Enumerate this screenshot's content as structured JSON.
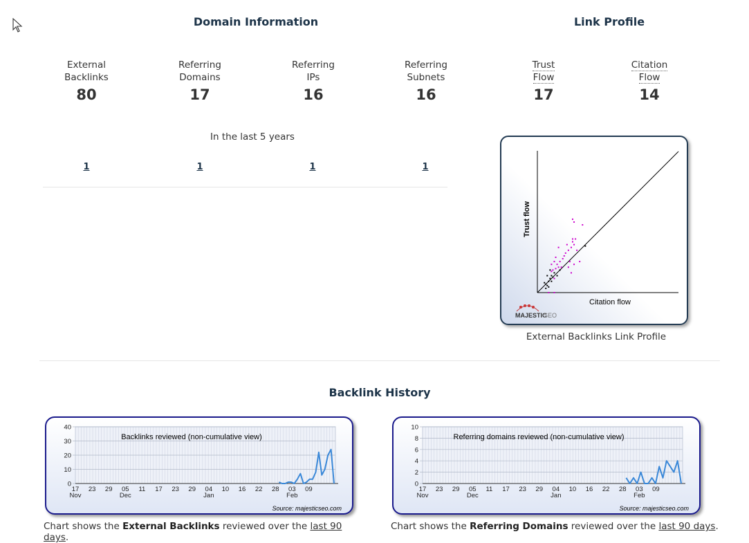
{
  "domain_info": {
    "title": "Domain Information",
    "stats": [
      {
        "label1": "External",
        "label2": "Backlinks",
        "value": "80"
      },
      {
        "label1": "Referring",
        "label2": "Domains",
        "value": "17"
      },
      {
        "label1": "Referring",
        "label2": "IPs",
        "value": "16"
      },
      {
        "label1": "Referring",
        "label2": "Subnets",
        "value": "16"
      }
    ],
    "period_label": "In the last 5 years",
    "period_values": [
      "1",
      "1",
      "1",
      "1"
    ]
  },
  "link_profile": {
    "title": "Link Profile",
    "stats": [
      {
        "label1": "Trust",
        "label2": "Flow",
        "value": "17"
      },
      {
        "label1": "Citation",
        "label2": "Flow",
        "value": "14"
      }
    ],
    "chart_caption": "External Backlinks Link Profile",
    "logo_text": "MAJESTIC",
    "logo_text2": "SEO"
  },
  "history": {
    "title": "Backlink History",
    "source": "Source: majesticseo.com",
    "caption_left": {
      "pre": "Chart shows the ",
      "bold": "External Backlinks",
      "mid": " reviewed over the ",
      "link": "last 90 days",
      "post": "."
    },
    "caption_right": {
      "pre": "Chart shows the ",
      "bold": "Referring Domains",
      "mid": " reviewed over the ",
      "link": "last 90 days",
      "post": "."
    }
  },
  "chart_data": [
    {
      "type": "scatter",
      "title": "",
      "xlabel": "Citation flow",
      "ylabel": "Trust flow",
      "xlim": [
        0,
        100
      ],
      "ylim": [
        0,
        100
      ],
      "reference_line": "y = x",
      "series": [
        {
          "color": "#cc00cc",
          "points": [
            [
              20,
              28
            ],
            [
              22,
              30
            ],
            [
              24,
              32
            ],
            [
              21,
              34
            ],
            [
              25,
              36
            ],
            [
              18,
              24
            ],
            [
              26,
              20
            ],
            [
              23,
              22
            ],
            [
              27,
              38
            ],
            [
              15,
              18
            ],
            [
              14,
              20
            ],
            [
              13,
              17
            ],
            [
              16,
              22
            ],
            [
              17,
              18
            ],
            [
              19,
              26
            ],
            [
              12,
              10
            ],
            [
              11,
              16
            ],
            [
              26,
              34
            ],
            [
              24,
              14
            ],
            [
              13,
              25
            ],
            [
              10,
              15
            ],
            [
              28,
              30
            ],
            [
              25,
              38
            ],
            [
              22,
              18
            ],
            [
              30,
              22
            ],
            [
              15,
              32
            ],
            [
              10,
              20
            ],
            [
              12,
              0
            ],
            [
              8,
              0
            ],
            [
              26,
              50
            ],
            [
              12,
              22
            ],
            [
              25,
              52
            ],
            [
              32,
              48
            ]
          ]
        },
        {
          "color": "#000000",
          "points": [
            [
              7,
              5
            ],
            [
              8,
              8
            ],
            [
              6,
              6
            ],
            [
              9,
              10
            ],
            [
              10,
              12
            ],
            [
              11,
              11
            ],
            [
              8,
              4
            ],
            [
              12,
              14
            ],
            [
              14,
              12
            ],
            [
              6,
              3
            ],
            [
              9,
              16
            ],
            [
              10,
              8
            ],
            [
              7,
              12
            ],
            [
              16,
              16
            ],
            [
              34,
              33
            ],
            [
              5,
              7
            ]
          ]
        }
      ]
    },
    {
      "type": "line",
      "title": "Backlinks reviewed (non-cumulative view)",
      "xlabel": "",
      "ylabel": "",
      "ylim": [
        0,
        40
      ],
      "y_ticks": [
        "0",
        "10",
        "20",
        "30",
        "40"
      ],
      "x_ticks": [
        "17",
        "23",
        "29",
        "05",
        "11",
        "17",
        "23",
        "29",
        "04",
        "10",
        "16",
        "22",
        "28",
        "03",
        "09"
      ],
      "x_month_labels": [
        {
          "label": "Nov",
          "at": 0
        },
        {
          "label": "Dec",
          "at": 3
        },
        {
          "label": "Jan",
          "at": 8
        },
        {
          "label": "Feb",
          "at": 13
        }
      ],
      "series": [
        {
          "color": "#3a88d8",
          "values": [
            1,
            0,
            0,
            1,
            1,
            0,
            3,
            7,
            0,
            1,
            3,
            3,
            8,
            22,
            6,
            10,
            20,
            24,
            0
          ]
        }
      ]
    },
    {
      "type": "line",
      "title": "Referring domains reviewed (non-cumulative view)",
      "xlabel": "",
      "ylabel": "",
      "ylim": [
        0,
        10
      ],
      "y_ticks": [
        "0",
        "2",
        "4",
        "6",
        "8",
        "10"
      ],
      "x_ticks": [
        "17",
        "23",
        "29",
        "05",
        "11",
        "17",
        "23",
        "29",
        "04",
        "10",
        "16",
        "22",
        "28",
        "03",
        "09"
      ],
      "x_month_labels": [
        {
          "label": "Nov",
          "at": 0
        },
        {
          "label": "Dec",
          "at": 3
        },
        {
          "label": "Jan",
          "at": 8
        },
        {
          "label": "Feb",
          "at": 13
        }
      ],
      "series": [
        {
          "color": "#3a88d8",
          "values": [
            1,
            0,
            1,
            0,
            2,
            0,
            0,
            1,
            0,
            3,
            1,
            4,
            3,
            2,
            4,
            0
          ]
        }
      ]
    }
  ]
}
